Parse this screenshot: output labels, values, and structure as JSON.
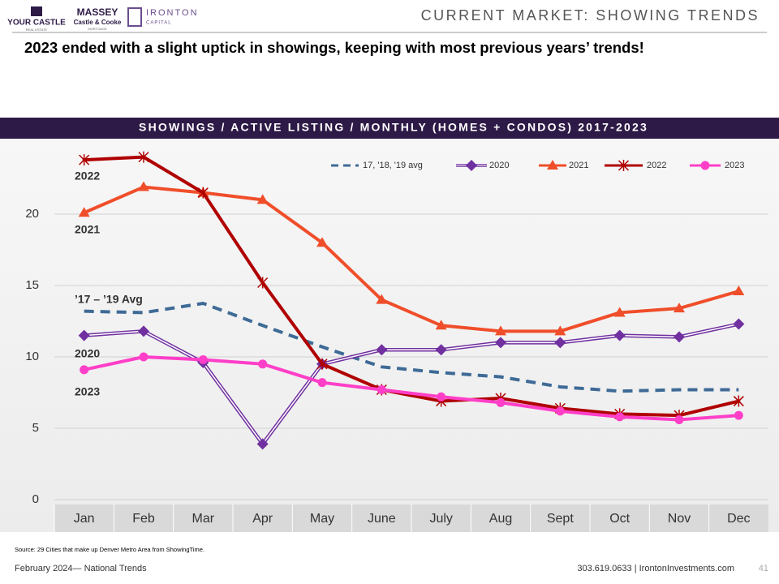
{
  "header": {
    "title": "CURRENT MARKET: SHOWING TRENDS",
    "subtitle": "2023 ended with a slight uptick in showings, keeping with most previous years’ trends!",
    "logos": [
      "YOUR CASTLE",
      "REAL ESTATE",
      "MASSEY",
      "Castle & Cooke",
      "MORTGAGE",
      "IRONTON",
      "CAPITAL"
    ]
  },
  "chart_data": {
    "type": "line",
    "title": "SHOWINGS / ACTIVE LISTING / MONTHLY (HOMES + CONDOS) 2017-2023",
    "categories": [
      "Jan",
      "Feb",
      "Mar",
      "Apr",
      "May",
      "June",
      "July",
      "Aug",
      "Sept",
      "Oct",
      "Nov",
      "Dec"
    ],
    "series": [
      {
        "name": "17, '18, '19 avg",
        "color": "#3e6a96",
        "dashed": true,
        "marker": "none",
        "values": [
          13.2,
          13.1,
          13.75,
          12.2,
          10.7,
          9.3,
          8.9,
          8.6,
          7.9,
          7.6,
          7.7,
          7.7
        ]
      },
      {
        "name": "2020",
        "color": "#7030a0",
        "double": true,
        "marker": "diamond",
        "values": [
          11.5,
          11.8,
          9.6,
          3.9,
          9.5,
          10.5,
          10.5,
          11.0,
          11.0,
          11.5,
          11.4,
          12.3
        ]
      },
      {
        "name": "2021",
        "color": "#f04e2a",
        "marker": "triangle",
        "values": [
          20.1,
          21.9,
          21.5,
          21.0,
          18.0,
          14.0,
          12.2,
          11.8,
          11.8,
          13.1,
          13.4,
          14.6
        ]
      },
      {
        "name": "2022",
        "color": "#b00000",
        "marker": "x",
        "values": [
          23.8,
          24.0,
          21.5,
          15.2,
          9.5,
          7.7,
          6.9,
          7.1,
          6.4,
          6.0,
          5.9,
          6.9
        ]
      },
      {
        "name": "2023",
        "color": "#ff3fc8",
        "marker": "circle",
        "values": [
          9.1,
          10.0,
          9.8,
          9.5,
          8.2,
          7.7,
          7.2,
          6.8,
          6.2,
          5.8,
          5.6,
          5.9
        ]
      }
    ],
    "ylim": [
      0,
      25
    ],
    "yticks": [
      0,
      5,
      10,
      15,
      20
    ],
    "grid": true,
    "legend": "top",
    "annotations": [
      "2022",
      "2021",
      "’17 – ’19 Avg",
      "2020",
      "2023"
    ]
  },
  "footer": {
    "source": "Source: 29 Cities that make up Denver Metro Area from ShowingTime.",
    "left": "February 2024— National Trends",
    "contact": "303.619.0633 | IrontonInvestments.com",
    "page": "41"
  }
}
